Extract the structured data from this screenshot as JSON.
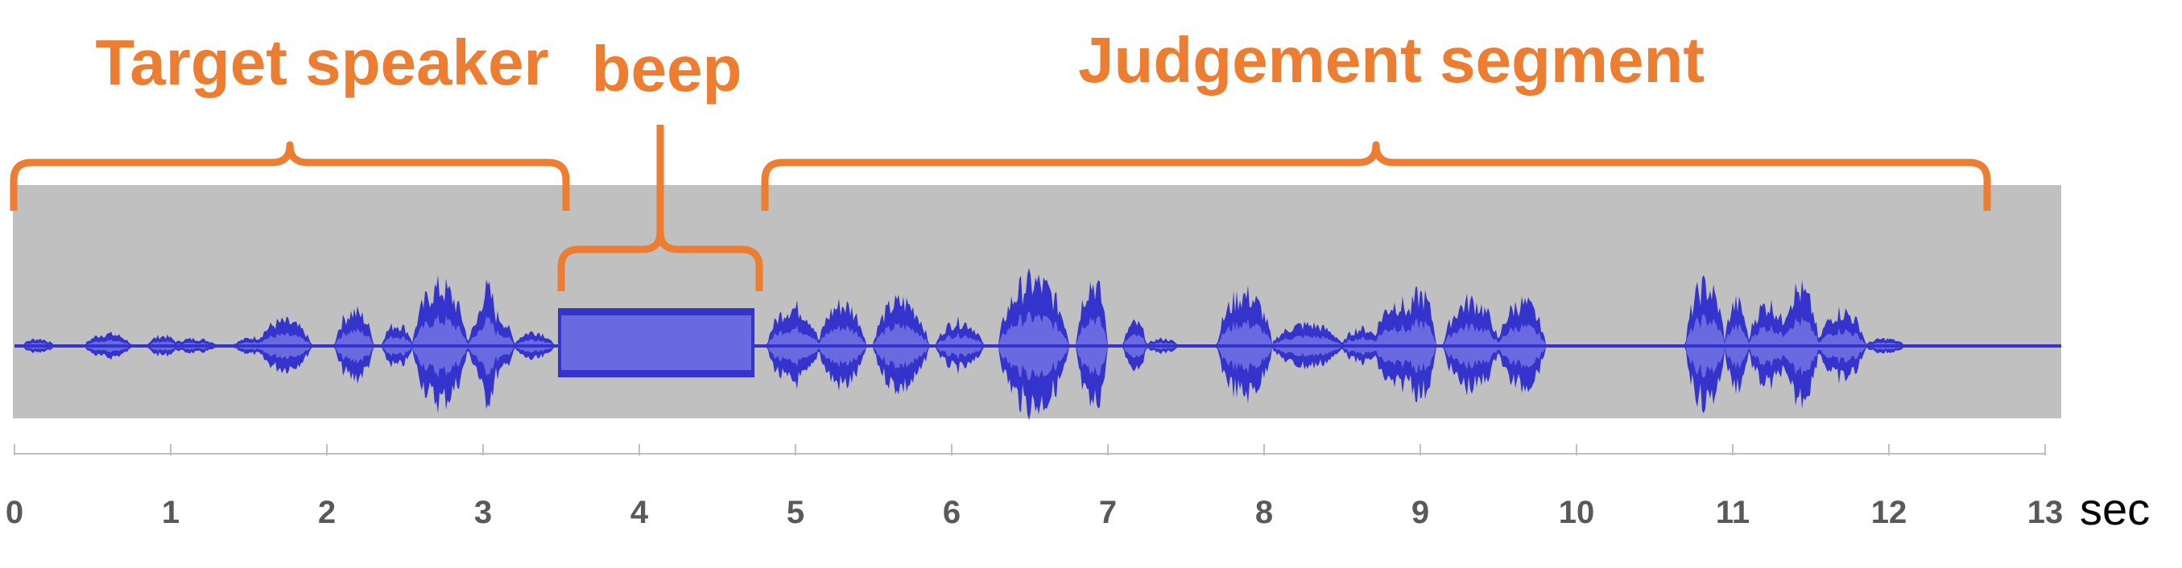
{
  "segments": [
    {
      "label": "Target speaker",
      "start": 0,
      "end": 3.5
    },
    {
      "label": "beep",
      "start": 3.5,
      "end": 4.75
    },
    {
      "label": "Judgement segment",
      "start": 4.75,
      "end": 12.55
    }
  ],
  "axis": {
    "ticks": [
      "0",
      "1",
      "2",
      "3",
      "4",
      "5",
      "6",
      "7",
      "8",
      "9",
      "10",
      "11",
      "12",
      "13"
    ],
    "unit": "sec",
    "range": [
      0,
      13
    ]
  },
  "waveform": {
    "background": "#C0C0C0",
    "wave_color": "#3434CC",
    "wave_light_color": "#6A6AE0",
    "beep_start": 3.5,
    "beep_end": 4.75
  },
  "colors": {
    "brace": "#ED7D31",
    "axis": "#BFBFBF",
    "tick_text": "#595959"
  }
}
